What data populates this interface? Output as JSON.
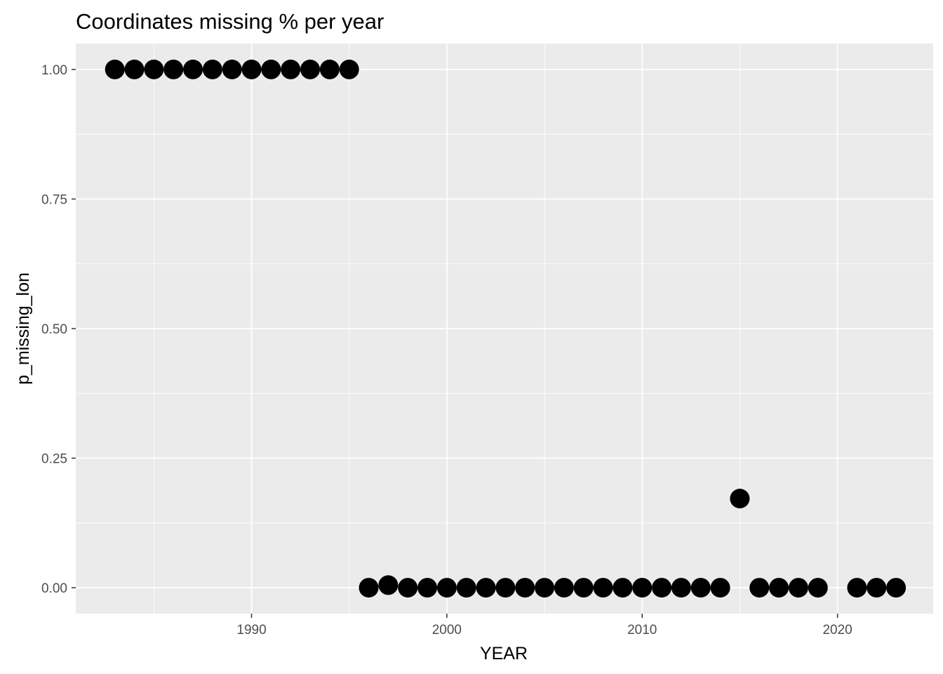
{
  "chart_data": {
    "type": "scatter",
    "title": "Coordinates missing % per year",
    "xlabel": "YEAR",
    "ylabel": "p_missing_lon",
    "xlim": [
      1981.0,
      2024.9
    ],
    "ylim": [
      -0.05,
      1.05
    ],
    "x_ticks": [
      1990,
      2000,
      2010,
      2020
    ],
    "y_ticks": [
      0.0,
      0.25,
      0.5,
      0.75,
      1.0
    ],
    "x_tick_labels": [
      "1990",
      "2000",
      "2010",
      "2020"
    ],
    "y_tick_labels": [
      "0.00",
      "0.25",
      "0.50",
      "0.75",
      "1.00"
    ],
    "grid": true,
    "legend": "none",
    "colors": {
      "panel_background": "#EBEBEB",
      "grid": "#FFFFFF",
      "point": "#000000"
    },
    "points": [
      {
        "x": 1983,
        "y": 1.0
      },
      {
        "x": 1984,
        "y": 1.0
      },
      {
        "x": 1985,
        "y": 1.0
      },
      {
        "x": 1986,
        "y": 1.0
      },
      {
        "x": 1987,
        "y": 1.0
      },
      {
        "x": 1988,
        "y": 1.0
      },
      {
        "x": 1989,
        "y": 1.0
      },
      {
        "x": 1990,
        "y": 1.0
      },
      {
        "x": 1991,
        "y": 1.0
      },
      {
        "x": 1992,
        "y": 1.0
      },
      {
        "x": 1993,
        "y": 1.0
      },
      {
        "x": 1994,
        "y": 1.0
      },
      {
        "x": 1995,
        "y": 1.0
      },
      {
        "x": 1996,
        "y": 0.0
      },
      {
        "x": 1997,
        "y": 0.005
      },
      {
        "x": 1998,
        "y": 0.0
      },
      {
        "x": 1999,
        "y": 0.0
      },
      {
        "x": 2000,
        "y": 0.0
      },
      {
        "x": 2001,
        "y": 0.0
      },
      {
        "x": 2002,
        "y": 0.0
      },
      {
        "x": 2003,
        "y": 0.0
      },
      {
        "x": 2004,
        "y": 0.0
      },
      {
        "x": 2005,
        "y": 0.0
      },
      {
        "x": 2006,
        "y": 0.0
      },
      {
        "x": 2007,
        "y": 0.0
      },
      {
        "x": 2008,
        "y": 0.0
      },
      {
        "x": 2009,
        "y": 0.0
      },
      {
        "x": 2010,
        "y": 0.0
      },
      {
        "x": 2011,
        "y": 0.0
      },
      {
        "x": 2012,
        "y": 0.0
      },
      {
        "x": 2013,
        "y": 0.0
      },
      {
        "x": 2014,
        "y": 0.0
      },
      {
        "x": 2015,
        "y": 0.172
      },
      {
        "x": 2016,
        "y": 0.0
      },
      {
        "x": 2017,
        "y": 0.0
      },
      {
        "x": 2018,
        "y": 0.0
      },
      {
        "x": 2019,
        "y": 0.0
      },
      {
        "x": 2021,
        "y": 0.0
      },
      {
        "x": 2022,
        "y": 0.0
      },
      {
        "x": 2023,
        "y": 0.0
      }
    ]
  }
}
